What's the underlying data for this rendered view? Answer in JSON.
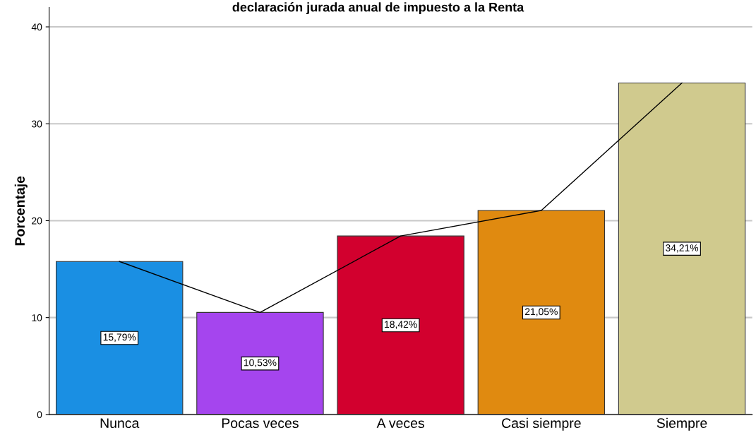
{
  "chart_data": {
    "type": "bar",
    "title": "declaración jurada anual de impuesto a la Renta",
    "ylabel": "Porcentaje",
    "categories": [
      "Nunca",
      "Pocas veces",
      "A veces",
      "Casi siempre",
      "Siempre"
    ],
    "series": [
      {
        "colors": [
          "#1a8fe3",
          "#a545ee",
          "#d2002e",
          "#e08a10",
          "#d0ca8e"
        ],
        "values": [
          15.79,
          10.53,
          18.42,
          21.05,
          34.21
        ],
        "value_labels": [
          "15,79%",
          "10,53%",
          "18,42%",
          "21,05%",
          "34,21%"
        ]
      },
      {
        "type": "line",
        "color": "#000000",
        "values": [
          15.79,
          10.53,
          18.42,
          21.05,
          34.21
        ]
      }
    ],
    "ylim": [
      0,
      42
    ],
    "yticks": [
      0,
      10,
      20,
      30,
      40
    ],
    "grid": "y",
    "legend": false
  }
}
